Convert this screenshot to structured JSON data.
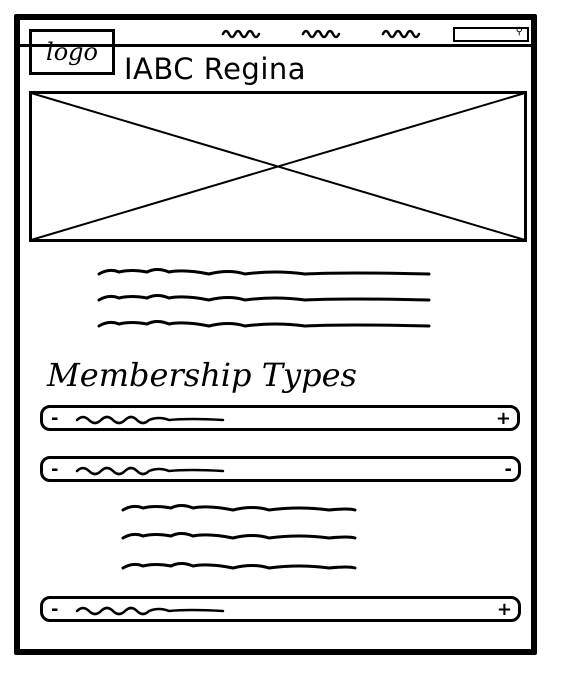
{
  "header": {
    "logo_label": "logo",
    "site_title": "IABC Regina",
    "nav_items": [
      "",
      "",
      ""
    ],
    "search": {
      "icon": "search-icon"
    }
  },
  "hero": {
    "type": "image-placeholder"
  },
  "intro": {
    "lines": 3
  },
  "membership": {
    "heading": "Membership Types",
    "accordions": [
      {
        "state": "collapsed",
        "toggle_left": "-",
        "toggle_right": "+"
      },
      {
        "state": "expanded",
        "toggle_left": "-",
        "toggle_right": "-",
        "content_lines": 3
      },
      {
        "state": "collapsed",
        "toggle_left": "-",
        "toggle_right": "+"
      }
    ]
  }
}
